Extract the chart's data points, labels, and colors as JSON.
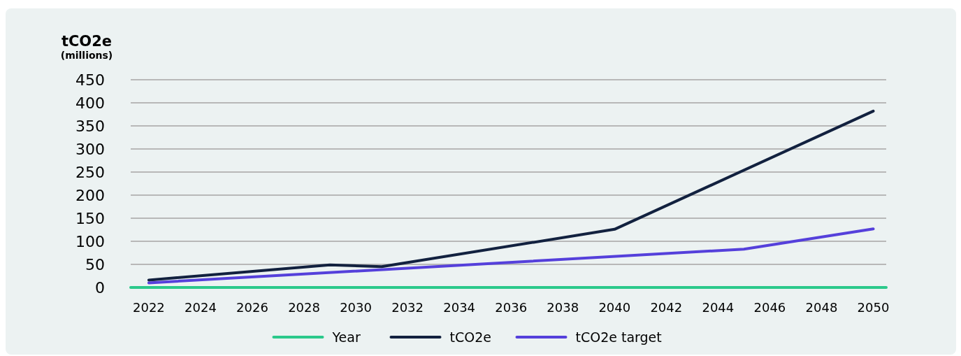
{
  "chart_data": {
    "type": "line",
    "ylabel": "tCO2e\n(millions)",
    "xlim": [
      2021.3,
      2050.5
    ],
    "xticks": [
      2022,
      2024,
      2026,
      2028,
      2030,
      2032,
      2034,
      2036,
      2038,
      2040,
      2042,
      2044,
      2046,
      2048,
      2050
    ],
    "ylim": [
      0,
      450
    ],
    "yticks": [
      0,
      50,
      100,
      150,
      200,
      250,
      300,
      350,
      400,
      450
    ],
    "grid": "y",
    "legend": "bottom",
    "marker": "none",
    "line_style": "solid",
    "series": [
      {
        "name": "Year",
        "color": "#2bc98b",
        "x": [
          2021.3,
          2050.5
        ],
        "values": [
          0,
          0
        ]
      },
      {
        "name": "tCO2e",
        "color": "#12213f",
        "x": [
          2022,
          2029,
          2031,
          2040,
          2050
        ],
        "values": [
          16,
          49,
          45,
          126,
          382
        ]
      },
      {
        "name": "tCO2e target",
        "color": "#5540db",
        "x": [
          2022,
          2045,
          2050
        ],
        "values": [
          10,
          83,
          127
        ]
      }
    ]
  }
}
